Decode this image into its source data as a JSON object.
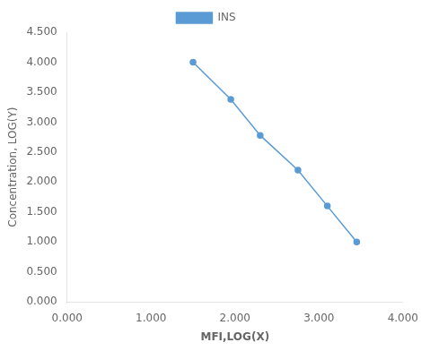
{
  "chart_data": {
    "type": "line",
    "x": [
      1.5,
      1.95,
      2.3,
      2.75,
      3.1,
      3.45
    ],
    "series": [
      {
        "name": "INS",
        "color": "#5B9BD5",
        "values": [
          4.0,
          3.38,
          2.78,
          2.2,
          1.6,
          1.0
        ],
        "marker": "circle",
        "line_style": "solid"
      }
    ],
    "xlabel": "MFI,LOG(X)",
    "ylabel": "Concentration, LOG(Y)",
    "xlim": [
      0.0,
      4.0
    ],
    "ylim": [
      0.0,
      4.5
    ],
    "xticks": [
      {
        "value": 0,
        "label": "0.000"
      },
      {
        "value": 1,
        "label": "1.000"
      },
      {
        "value": 2,
        "label": "2.000"
      },
      {
        "value": 3,
        "label": "3.000"
      },
      {
        "value": 4,
        "label": "4.000"
      }
    ],
    "yticks": [
      {
        "value": 0,
        "label": "0.000"
      },
      {
        "value": 0.5,
        "label": "0.500"
      },
      {
        "value": 1,
        "label": "1.000"
      },
      {
        "value": 1.5,
        "label": "1.500"
      },
      {
        "value": 2,
        "label": "2.000"
      },
      {
        "value": 2.5,
        "label": "2.500"
      },
      {
        "value": 3,
        "label": "3.000"
      },
      {
        "value": 3.5,
        "label": "3.500"
      },
      {
        "value": 4,
        "label": "4.000"
      },
      {
        "value": 4.5,
        "label": "4.500"
      }
    ],
    "grid": false,
    "legend": "top"
  }
}
